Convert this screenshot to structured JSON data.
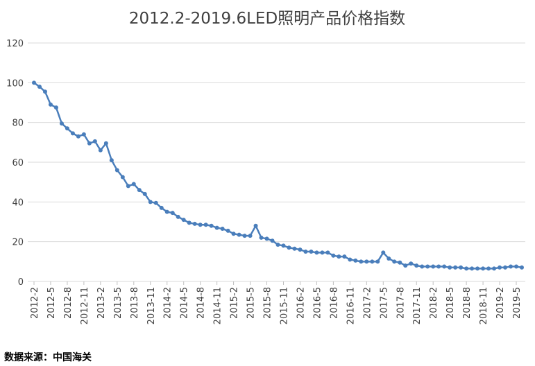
{
  "chart_data": {
    "type": "line",
    "title": "2012.2-2019.6LED照明产品价格指数",
    "categories": [
      "2012-2",
      null,
      null,
      "2012-5",
      null,
      null,
      "2012-8",
      null,
      null,
      "2012-11",
      null,
      null,
      "2013-2",
      null,
      null,
      "2013-5",
      null,
      null,
      "2013-8",
      null,
      null,
      "2013-11",
      null,
      null,
      "2014-2",
      null,
      null,
      "2014-5",
      null,
      null,
      "2014-8",
      null,
      null,
      "2014-11",
      null,
      null,
      "2015-2",
      null,
      null,
      "2015-5",
      null,
      null,
      "2015-8",
      null,
      null,
      "2015-11",
      null,
      null,
      "2016-2",
      null,
      null,
      "2016-5",
      null,
      null,
      "2016-8",
      null,
      null,
      "2016-11",
      null,
      null,
      "2017-2",
      null,
      null,
      "2017-5",
      null,
      null,
      "2017-8",
      null,
      null,
      "2017-11",
      null,
      null,
      "2018-2",
      null,
      null,
      "2018-5",
      null,
      null,
      "2018-8",
      null,
      null,
      "2018-11",
      null,
      null,
      "2019-2",
      null,
      null,
      "2019-5",
      null
    ],
    "values": [
      100,
      98,
      95.5,
      89,
      87.5,
      79.5,
      77,
      74.5,
      73,
      74,
      69.5,
      70.5,
      66,
      69.5,
      61,
      56,
      52.5,
      48,
      49,
      46,
      44,
      40,
      39.5,
      37,
      35,
      34.5,
      32.5,
      31,
      29.5,
      29,
      28.5,
      28.5,
      28,
      27,
      26.5,
      25.5,
      24,
      23.5,
      23,
      23,
      28,
      22,
      21.5,
      20.5,
      18.5,
      18,
      17,
      16.5,
      16,
      15,
      15,
      14.5,
      14.5,
      14.5,
      13,
      12.5,
      12.5,
      11,
      10.5,
      10,
      10,
      10,
      10,
      14.5,
      11.5,
      10,
      9.5,
      8,
      9,
      8,
      7.5,
      7.5,
      7.5,
      7.5,
      7.5,
      7,
      7,
      7,
      6.5,
      6.5,
      6.5,
      6.5,
      6.5,
      6.5,
      7,
      7,
      7.5,
      7.5,
      7
    ],
    "color": "#4a7ebb",
    "ylim": [
      0,
      120
    ],
    "yticks": [
      0,
      20,
      40,
      60,
      80,
      100,
      120
    ],
    "grid": true,
    "source": "数据来源：中国海关"
  }
}
